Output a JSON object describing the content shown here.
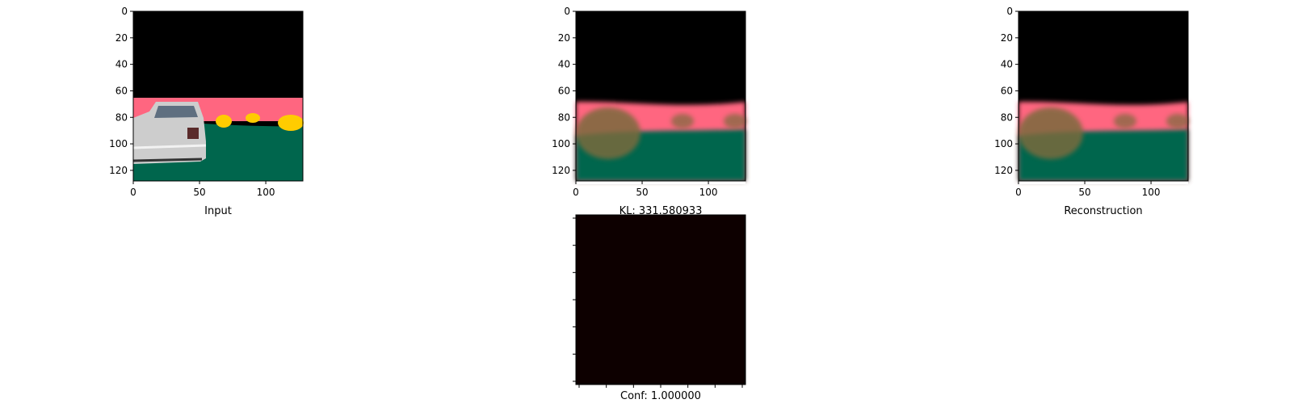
{
  "chart_data": [
    {
      "type": "image",
      "panel": "input",
      "xlabel": "Input",
      "x_ticks": [
        0,
        50,
        100
      ],
      "y_ticks": [
        0,
        20,
        40,
        60,
        80,
        100,
        120
      ],
      "xlim": [
        0,
        128
      ],
      "ylim": [
        128,
        0
      ],
      "colors": {
        "sky": "#000000",
        "road_far": "#ff6680",
        "ground": "#00664d",
        "cones": "#ffcc00",
        "car": "#c8c8c8"
      }
    },
    {
      "type": "image",
      "panel": "latent",
      "title": "KL: 331.580933",
      "x_ticks": [
        0,
        50,
        100
      ],
      "y_ticks": [
        0,
        20,
        40,
        60,
        80,
        100,
        120
      ],
      "xlim": [
        0,
        128
      ],
      "ylim": [
        128,
        0
      ],
      "colors": {
        "sky": "#000000",
        "road_far": "#ff6680",
        "ground": "#00664d",
        "blob": "#7a6a3c"
      }
    },
    {
      "type": "image",
      "panel": "reconstruction",
      "xlabel": "Reconstruction",
      "x_ticks": [
        0,
        50,
        100
      ],
      "y_ticks": [
        0,
        20,
        40,
        60,
        80,
        100,
        120
      ],
      "xlim": [
        0,
        128
      ],
      "ylim": [
        128,
        0
      ],
      "colors": {
        "sky": "#000000",
        "road_far": "#ff6680",
        "ground": "#00664d",
        "blob": "#7a6a3c"
      }
    },
    {
      "type": "heatmap",
      "panel": "confidence",
      "xlabel": "Conf: 1.000000",
      "values": [
        [
          1.0
        ]
      ],
      "color": "#0d0000"
    }
  ]
}
